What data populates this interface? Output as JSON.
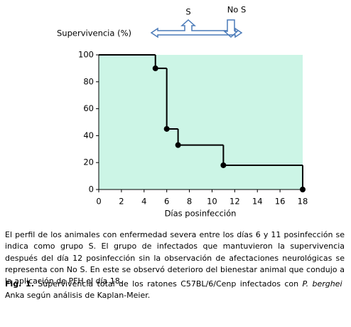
{
  "chart_data": {
    "type": "step",
    "ylabel": "Supervivencia (%)",
    "xlabel": "Días posinfección",
    "annotations": [
      "S",
      "No S"
    ],
    "x": [
      0,
      5,
      6,
      7,
      11,
      18
    ],
    "values": [
      100,
      90,
      45,
      33,
      18,
      0
    ],
    "color": "#000000",
    "background": "#ccf5e6",
    "xlim": [
      0,
      18
    ],
    "xticks": [
      0,
      2,
      4,
      6,
      8,
      10,
      12,
      14,
      16,
      18
    ],
    "ylim": [
      0,
      100
    ],
    "yticks": [
      0,
      20,
      40,
      60,
      80,
      100
    ]
  },
  "description": "El perfil de los animales con enfermedad severa entre los días 6 y 11 posinfección se indica como grupo S. El grupo de infectados que mantuvieron la supervivencia después del día 12 posinfección sin la observación de afectaciones neurológicas se representa con No S. En este se observó deterioro del bienestar animal que condujo a la aplicación de PFH el día 18.",
  "caption": {
    "label": "Fig. 1.",
    "text": "Supervivencia total de los ratones C57BL/6/Cenp infectados con",
    "species": "P. berghei",
    "text_end": "Anka según análisis de Kaplan-Meier."
  }
}
